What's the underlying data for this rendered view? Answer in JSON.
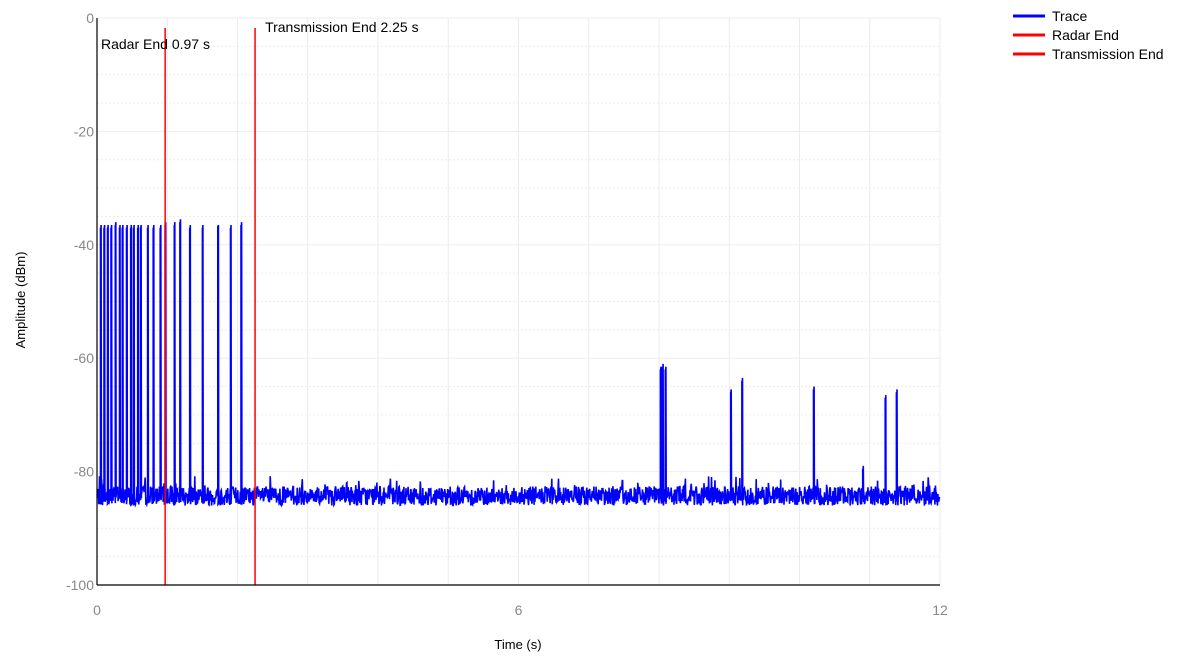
{
  "chart_data": {
    "type": "line",
    "xlabel": "Time (s)",
    "ylabel": "Amplitude (dBm)",
    "xlim": [
      0,
      12
    ],
    "ylim": [
      -100,
      0
    ],
    "x_ticks": [
      "0",
      "6",
      "12"
    ],
    "x_tick_values": [
      0,
      6,
      12
    ],
    "y_ticks": [
      "0",
      "-20",
      "-40",
      "-60",
      "-80",
      "-100"
    ],
    "y_tick_values": [
      0,
      -20,
      -40,
      -60,
      -80,
      -100
    ],
    "grid": true,
    "legend_position": "top-right",
    "series": [
      {
        "name": "Trace",
        "color": "#0000ff",
        "noise_floor_dbm": [
          -86,
          -82
        ],
        "pulses": [
          {
            "t": 0.05,
            "peak": -37
          },
          {
            "t": 0.1,
            "peak": -37
          },
          {
            "t": 0.15,
            "peak": -37
          },
          {
            "t": 0.2,
            "peak": -37
          },
          {
            "t": 0.26,
            "peak": -36.5
          },
          {
            "t": 0.32,
            "peak": -37
          },
          {
            "t": 0.36,
            "peak": -37
          },
          {
            "t": 0.42,
            "peak": -37
          },
          {
            "t": 0.48,
            "peak": -37
          },
          {
            "t": 0.52,
            "peak": -37
          },
          {
            "t": 0.58,
            "peak": -37
          },
          {
            "t": 0.62,
            "peak": -37
          },
          {
            "t": 0.72,
            "peak": -37
          },
          {
            "t": 0.8,
            "peak": -37
          },
          {
            "t": 0.9,
            "peak": -37
          },
          {
            "t": 0.97,
            "peak": -36.5
          },
          {
            "t": 1.1,
            "peak": -36.5
          },
          {
            "t": 1.18,
            "peak": -36
          },
          {
            "t": 1.32,
            "peak": -37
          },
          {
            "t": 1.5,
            "peak": -37
          },
          {
            "t": 1.72,
            "peak": -37
          },
          {
            "t": 1.9,
            "peak": -37
          },
          {
            "t": 2.05,
            "peak": -36.5
          },
          {
            "t": 8.02,
            "peak": -62
          },
          {
            "t": 8.05,
            "peak": -61.5
          },
          {
            "t": 8.09,
            "peak": -62
          },
          {
            "t": 9.02,
            "peak": -66
          },
          {
            "t": 9.18,
            "peak": -64
          },
          {
            "t": 10.2,
            "peak": -65.5
          },
          {
            "t": 10.9,
            "peak": -79.5
          },
          {
            "t": 11.22,
            "peak": -67
          },
          {
            "t": 11.38,
            "peak": -66
          }
        ]
      },
      {
        "name": "Radar End",
        "color": "#ff0000",
        "x": 0.97
      },
      {
        "name": "Transmission End",
        "color": "#ff0000",
        "x": 2.25
      }
    ],
    "annotations": [
      {
        "text": "Radar End 0.97 s",
        "x": 0.97
      },
      {
        "text": "Transmission End 2.25 s",
        "x": 2.25
      }
    ]
  }
}
